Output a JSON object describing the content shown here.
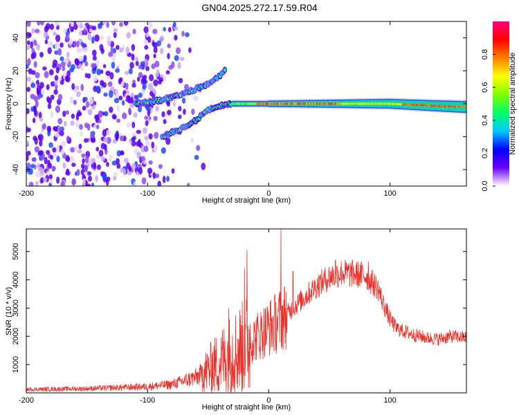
{
  "title": "GN04.2025.272.17.59.R04",
  "charts": [
    {
      "id": "spectrogram",
      "type": "heatmap",
      "xlabel": "Height of straight line (km)",
      "ylabel": "Frequency (Hz)",
      "xlim": [
        -200,
        163
      ],
      "ylim": [
        -50,
        50
      ],
      "xticks": [
        -200,
        -100,
        0,
        100
      ],
      "yticks": [
        -40,
        -20,
        0,
        20,
        40
      ],
      "colorbar": {
        "label": "Normalized spectral amplitude",
        "range": [
          0,
          1
        ],
        "ticks": [
          "0.0",
          "0.2",
          "0.4",
          "0.6",
          "0.8"
        ],
        "colors": [
          "#ffffff",
          "#6a00ff",
          "#0000ff",
          "#00c8ff",
          "#00ff66",
          "#80ff00",
          "#ffff00",
          "#ff8000",
          "#ff0000",
          "#ff0080"
        ]
      },
      "features": [
        {
          "name": "noise-region",
          "x_range": [
            -200,
            -80
          ],
          "freq_range": [
            -50,
            50
          ]
        },
        {
          "name": "upper-branch",
          "points": [
            [
              -110,
              0
            ],
            [
              -90,
              2
            ],
            [
              -70,
              6
            ],
            [
              -50,
              12
            ],
            [
              -40,
              17
            ],
            [
              -35,
              22
            ]
          ]
        },
        {
          "name": "lower-branch",
          "points": [
            [
              -88,
              -20
            ],
            [
              -75,
              -16
            ],
            [
              -60,
              -10
            ],
            [
              -50,
              -4
            ],
            [
              -40,
              -1
            ],
            [
              -30,
              0
            ]
          ]
        },
        {
          "name": "main-trace",
          "points": [
            [
              -30,
              0
            ],
            [
              0,
              0
            ],
            [
              50,
              0
            ],
            [
              100,
              0
            ],
            [
              130,
              -1
            ],
            [
              163,
              -2
            ]
          ]
        }
      ]
    },
    {
      "id": "snr",
      "type": "line",
      "color": "#e8322c",
      "xlabel": "Height of straight line (km)",
      "ylabel": "SNR (10 * v/v)",
      "xlim": [
        -200,
        163
      ],
      "ylim": [
        0,
        5800
      ],
      "xticks": [
        -200,
        -100,
        0,
        100
      ],
      "yticks": [
        1000,
        2000,
        3000,
        4000,
        5000
      ],
      "envelope": [
        [
          -200,
          120
        ],
        [
          -150,
          150
        ],
        [
          -100,
          220
        ],
        [
          -80,
          300
        ],
        [
          -60,
          550
        ],
        [
          -50,
          800
        ],
        [
          -40,
          1100
        ],
        [
          -30,
          1400
        ],
        [
          -20,
          1600
        ],
        [
          -10,
          2000
        ],
        [
          0,
          2300
        ],
        [
          10,
          2600
        ],
        [
          20,
          3000
        ],
        [
          30,
          3400
        ],
        [
          40,
          3800
        ],
        [
          50,
          4100
        ],
        [
          60,
          4250
        ],
        [
          70,
          4200
        ],
        [
          80,
          4150
        ],
        [
          90,
          3700
        ],
        [
          95,
          3100
        ],
        [
          100,
          2600
        ],
        [
          105,
          2300
        ],
        [
          110,
          2200
        ],
        [
          120,
          2050
        ],
        [
          130,
          1950
        ],
        [
          140,
          1900
        ],
        [
          150,
          2000
        ],
        [
          163,
          1950
        ]
      ],
      "spikes": [
        [
          -33,
          3000
        ],
        [
          -20,
          4400
        ],
        [
          -18,
          5050
        ],
        [
          10,
          5800
        ],
        [
          20,
          4300
        ],
        [
          55,
          4700
        ],
        [
          82,
          4650
        ]
      ]
    }
  ]
}
